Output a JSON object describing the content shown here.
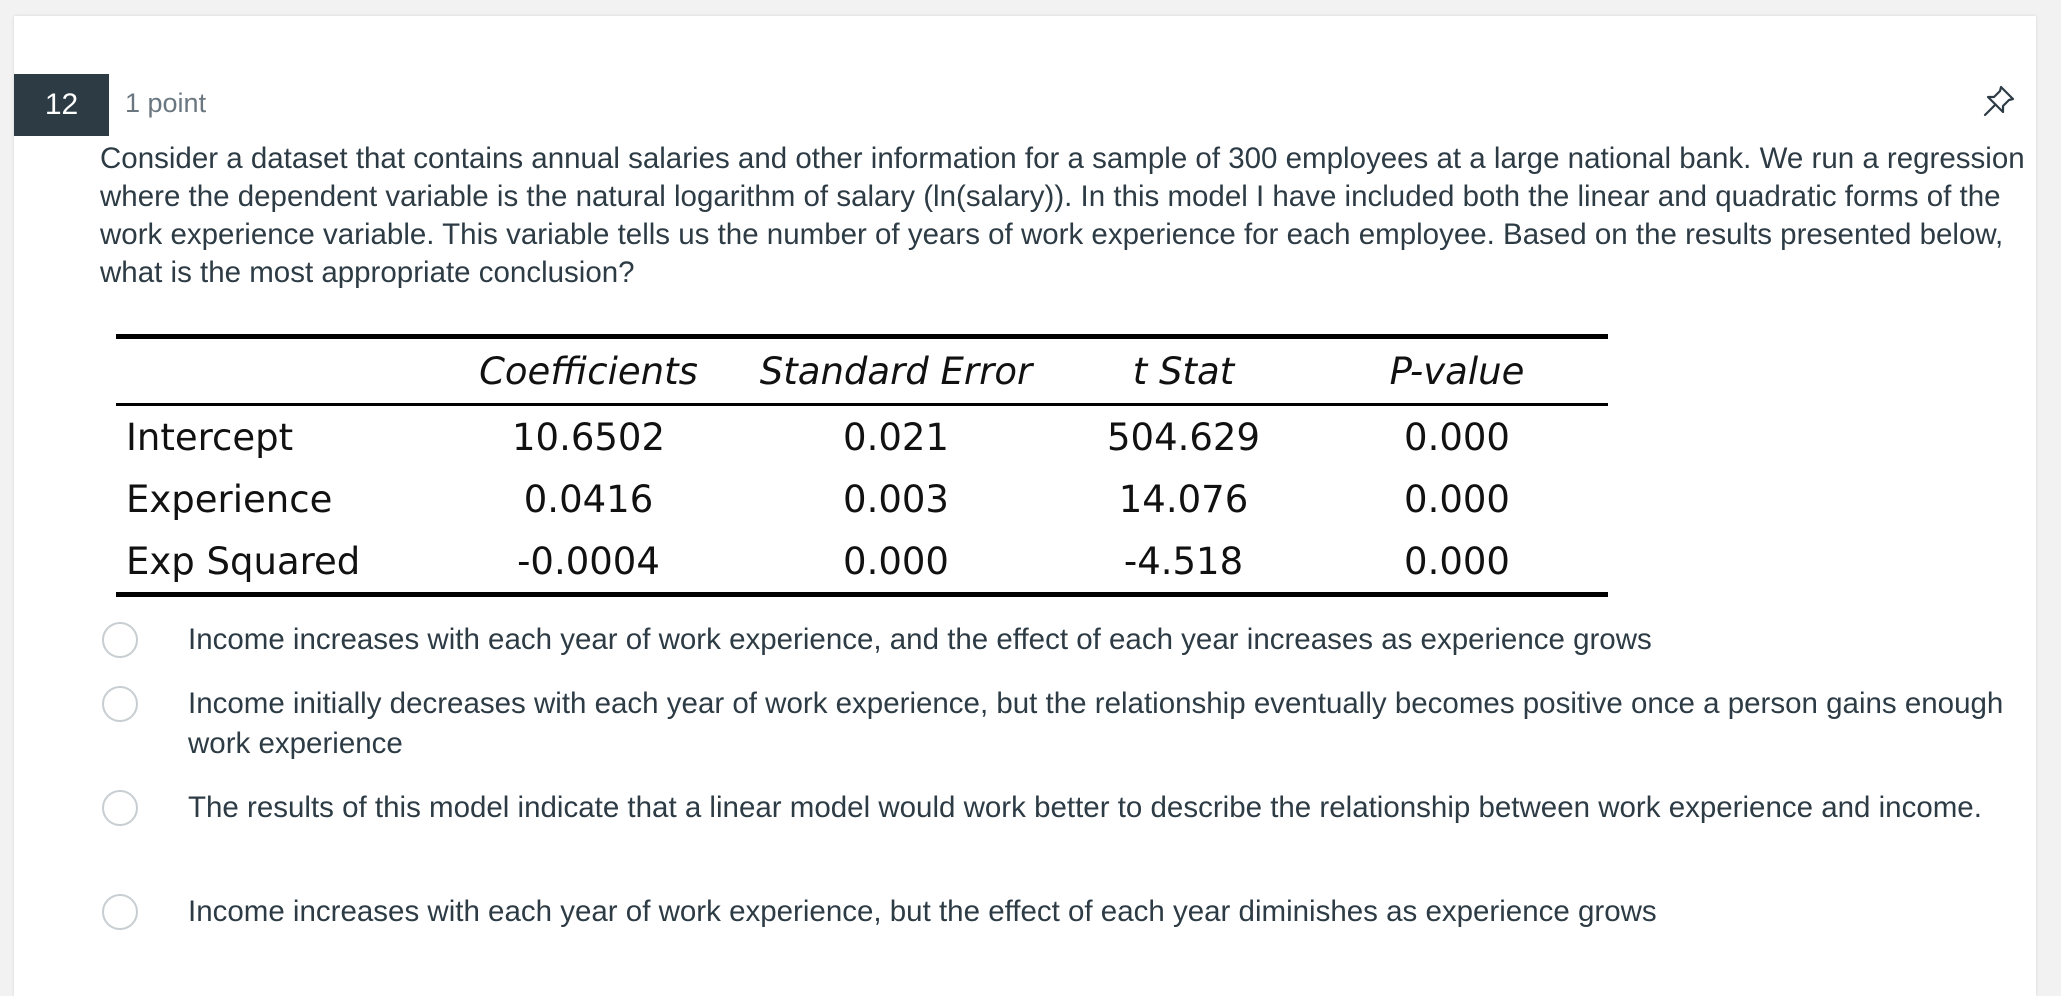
{
  "question": {
    "number": "12",
    "points": "1 point",
    "text": "Consider a dataset that contains annual salaries and other information for a sample of 300 employees at a large national bank. We run a regression where the dependent variable is the natural logarithm of salary (ln(salary)). In this model I have included both the linear and quadratic forms of the work experience variable. This variable tells us the number of years of work experience for each employee. Based on the results presented below, what is the most appropriate conclusion?"
  },
  "icons": {
    "pin": "pin-icon"
  },
  "regression_table": {
    "headers": [
      "",
      "Coefficients",
      "Standard Error",
      "t Stat",
      "P-value"
    ],
    "rows": [
      [
        "Intercept",
        "10.6502",
        "0.021",
        "504.629",
        "0.000"
      ],
      [
        "Experience",
        "0.0416",
        "0.003",
        "14.076",
        "0.000"
      ],
      [
        "Exp Squared",
        "-0.0004",
        "0.000",
        "-4.518",
        "0.000"
      ]
    ]
  },
  "answers": [
    "Income increases with each year of work experience, and the effect of each year increases as experience grows",
    "Income initially decreases with each year of work experience, but the relationship eventually becomes positive once a person gains enough work experience",
    "The results of this model indicate that a linear model would work better to describe the relationship between work experience and income.",
    "Income increases with each year of work experience, but the effect of each year diminishes as experience grows"
  ],
  "colors": {
    "badge_bg": "#2d3b45",
    "text": "#2d3b45",
    "muted": "#6b7780",
    "radio_border": "#c7cdd1"
  }
}
